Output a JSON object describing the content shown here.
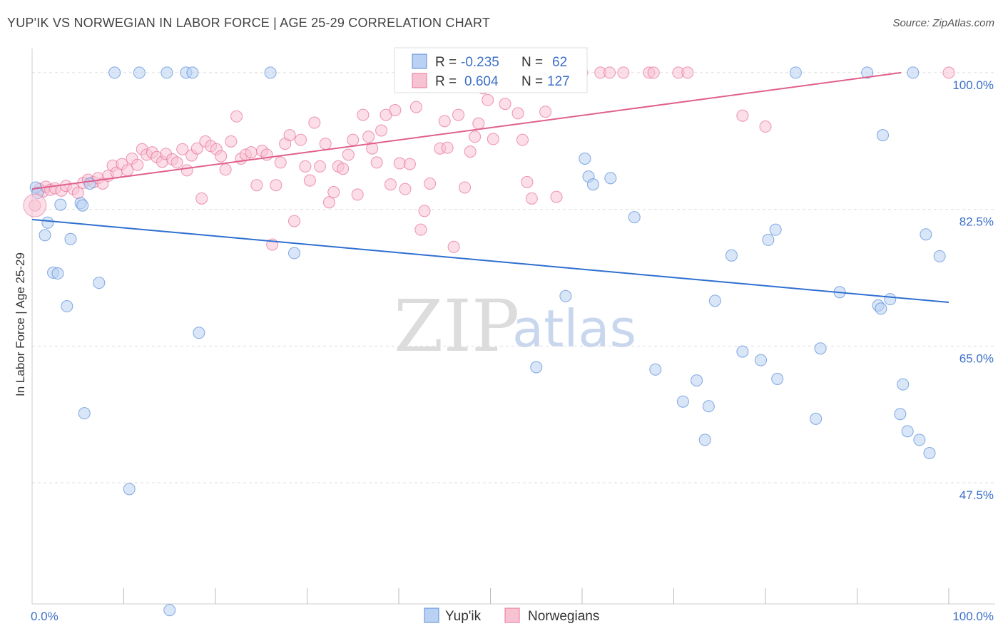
{
  "header": {
    "title": "YUP'IK VS NORWEGIAN IN LABOR FORCE | AGE 25-29 CORRELATION CHART",
    "source": "Source: ZipAtlas.com"
  },
  "watermark": {
    "part1": "ZIP",
    "part2": "atlas"
  },
  "legend": {
    "rows": [
      {
        "r_label": "R =",
        "r_value": "-0.235",
        "n_label": "N =",
        "n_value": "62",
        "color": "#5b8dd9"
      },
      {
        "r_label": "R =",
        "r_value": "0.604",
        "n_label": "N =",
        "n_value": "127",
        "color": "#e8739a"
      }
    ]
  },
  "chart_data": {
    "type": "scatter",
    "title": "YUP'IK VS NORWEGIAN IN LABOR FORCE | AGE 25-29 CORRELATION CHART",
    "xlabel": "",
    "ylabel": "In Labor Force | Age 25-29",
    "xlim": [
      0,
      100
    ],
    "ylim": [
      32,
      102
    ],
    "x_tick_labels": [
      "0.0%",
      "100.0%"
    ],
    "y_ticks": [
      47.5,
      65.0,
      82.5,
      100.0
    ],
    "y_tick_labels": [
      "47.5%",
      "65.0%",
      "82.5%",
      "100.0%"
    ],
    "grid": true,
    "legend_position": "bottom",
    "series": [
      {
        "name": "Yup'ik",
        "color": "#5b8dd9",
        "fill": "#b9d1f2",
        "trend": {
          "x": [
            0,
            100
          ],
          "y": [
            81.2,
            70.6
          ]
        },
        "points": [
          [
            0.4,
            85.3
          ],
          [
            0.6,
            84.6
          ],
          [
            1.4,
            79.2
          ],
          [
            1.7,
            80.8
          ],
          [
            2.3,
            74.4
          ],
          [
            2.8,
            74.3
          ],
          [
            3.1,
            83.1
          ],
          [
            3.8,
            70.1
          ],
          [
            4.2,
            78.7
          ],
          [
            5.3,
            83.3
          ],
          [
            5.5,
            83.0
          ],
          [
            6.3,
            85.8
          ],
          [
            5.7,
            56.4
          ],
          [
            7.3,
            73.1
          ],
          [
            9.0,
            100.0
          ],
          [
            10.6,
            46.7
          ],
          [
            11.7,
            100.0
          ],
          [
            14.7,
            100.0
          ],
          [
            15.0,
            31.2
          ],
          [
            16.8,
            100.0
          ],
          [
            17.5,
            100.0
          ],
          [
            18.2,
            66.7
          ],
          [
            26.0,
            100.0
          ],
          [
            28.6,
            76.9
          ],
          [
            55.0,
            62.3
          ],
          [
            58.2,
            71.4
          ],
          [
            60.3,
            89.0
          ],
          [
            60.7,
            86.7
          ],
          [
            61.2,
            85.7
          ],
          [
            63.1,
            86.5
          ],
          [
            65.7,
            81.5
          ],
          [
            68.0,
            62.0
          ],
          [
            71.0,
            57.9
          ],
          [
            72.5,
            60.6
          ],
          [
            73.4,
            53.0
          ],
          [
            73.8,
            57.3
          ],
          [
            74.5,
            70.8
          ],
          [
            76.3,
            76.6
          ],
          [
            77.5,
            64.3
          ],
          [
            79.5,
            63.2
          ],
          [
            80.3,
            78.6
          ],
          [
            81.1,
            79.9
          ],
          [
            81.3,
            60.8
          ],
          [
            83.3,
            100.0
          ],
          [
            85.5,
            55.7
          ],
          [
            86.0,
            64.7
          ],
          [
            88.1,
            71.9
          ],
          [
            91.1,
            100.0
          ],
          [
            92.3,
            70.2
          ],
          [
            92.6,
            69.8
          ],
          [
            92.8,
            92.0
          ],
          [
            93.6,
            71.0
          ],
          [
            95.0,
            60.1
          ],
          [
            94.7,
            56.3
          ],
          [
            95.5,
            54.1
          ],
          [
            96.1,
            100.0
          ],
          [
            96.8,
            53.0
          ],
          [
            97.5,
            79.3
          ],
          [
            97.9,
            51.3
          ],
          [
            99.0,
            76.5
          ]
        ]
      },
      {
        "name": "Norwegians",
        "color": "#e8739a",
        "fill": "#f7c3d3",
        "trend": {
          "x": [
            0,
            94.8
          ],
          "y": [
            85.1,
            100.0
          ]
        },
        "points": [
          [
            0.3,
            83.0
          ],
          [
            0.8,
            85.1
          ],
          [
            1.2,
            84.8
          ],
          [
            1.5,
            85.4
          ],
          [
            2.0,
            85.0
          ],
          [
            2.5,
            85.2
          ],
          [
            3.2,
            84.9
          ],
          [
            3.7,
            85.5
          ],
          [
            4.5,
            85.1
          ],
          [
            5.0,
            84.6
          ],
          [
            5.6,
            85.9
          ],
          [
            6.1,
            86.3
          ],
          [
            6.7,
            86.0
          ],
          [
            7.2,
            86.5
          ],
          [
            7.7,
            85.8
          ],
          [
            8.3,
            86.8
          ],
          [
            8.8,
            88.1
          ],
          [
            9.2,
            87.2
          ],
          [
            9.8,
            88.3
          ],
          [
            10.4,
            87.5
          ],
          [
            10.9,
            89.0
          ],
          [
            11.5,
            88.2
          ],
          [
            12.0,
            90.2
          ],
          [
            12.5,
            89.5
          ],
          [
            13.1,
            89.8
          ],
          [
            13.6,
            89.2
          ],
          [
            14.2,
            88.6
          ],
          [
            14.6,
            89.6
          ],
          [
            15.3,
            88.9
          ],
          [
            15.8,
            88.5
          ],
          [
            16.4,
            90.2
          ],
          [
            16.9,
            87.5
          ],
          [
            17.4,
            89.4
          ],
          [
            18.0,
            90.3
          ],
          [
            18.5,
            83.9
          ],
          [
            18.9,
            91.2
          ],
          [
            19.5,
            90.6
          ],
          [
            20.1,
            90.2
          ],
          [
            20.6,
            89.3
          ],
          [
            21.1,
            87.6
          ],
          [
            21.7,
            91.2
          ],
          [
            22.3,
            94.4
          ],
          [
            22.8,
            89.0
          ],
          [
            23.3,
            89.5
          ],
          [
            23.9,
            89.8
          ],
          [
            24.5,
            85.6
          ],
          [
            25.1,
            90.0
          ],
          [
            25.6,
            89.5
          ],
          [
            26.2,
            78.0
          ],
          [
            26.6,
            85.6
          ],
          [
            27.1,
            88.5
          ],
          [
            27.6,
            90.9
          ],
          [
            28.1,
            92.0
          ],
          [
            28.6,
            81.0
          ],
          [
            29.3,
            91.4
          ],
          [
            29.8,
            88.0
          ],
          [
            30.3,
            86.2
          ],
          [
            30.8,
            93.6
          ],
          [
            31.4,
            88.0
          ],
          [
            32.0,
            90.9
          ],
          [
            32.4,
            83.4
          ],
          [
            32.9,
            84.7
          ],
          [
            33.4,
            88.0
          ],
          [
            33.9,
            87.7
          ],
          [
            34.5,
            89.5
          ],
          [
            35.0,
            91.4
          ],
          [
            35.5,
            84.4
          ],
          [
            36.1,
            94.6
          ],
          [
            36.7,
            91.8
          ],
          [
            37.1,
            90.3
          ],
          [
            37.6,
            88.5
          ],
          [
            38.1,
            92.6
          ],
          [
            38.6,
            94.6
          ],
          [
            39.1,
            85.7
          ],
          [
            39.6,
            95.2
          ],
          [
            40.1,
            88.4
          ],
          [
            40.7,
            85.1
          ],
          [
            41.2,
            88.3
          ],
          [
            41.9,
            95.6
          ],
          [
            42.4,
            79.9
          ],
          [
            42.8,
            82.3
          ],
          [
            43.4,
            85.8
          ],
          [
            43.8,
            100.0
          ],
          [
            44.5,
            90.3
          ],
          [
            45.0,
            93.8
          ],
          [
            45.3,
            90.4
          ],
          [
            46.0,
            77.7
          ],
          [
            46.5,
            94.6
          ],
          [
            47.2,
            85.3
          ],
          [
            47.8,
            89.9
          ],
          [
            48.3,
            91.8
          ],
          [
            48.7,
            93.5
          ],
          [
            49.2,
            98.0
          ],
          [
            49.7,
            96.5
          ],
          [
            50.3,
            91.5
          ],
          [
            51.6,
            96.0
          ],
          [
            53.0,
            94.8
          ],
          [
            53.5,
            91.4
          ],
          [
            54.0,
            86.0
          ],
          [
            54.5,
            83.9
          ],
          [
            55.3,
            100.0
          ],
          [
            56.0,
            95.0
          ],
          [
            56.7,
            98.5
          ],
          [
            57.2,
            84.1
          ],
          [
            58.1,
            100.0
          ],
          [
            60.0,
            100.0
          ],
          [
            62.0,
            100.0
          ],
          [
            63.0,
            100.0
          ],
          [
            64.5,
            100.0
          ],
          [
            67.3,
            100.0
          ],
          [
            67.8,
            100.0
          ],
          [
            70.5,
            100.0
          ],
          [
            71.5,
            100.0
          ],
          [
            77.5,
            94.5
          ],
          [
            80.0,
            93.1
          ],
          [
            100.0,
            100.0
          ]
        ]
      }
    ]
  },
  "bottom_legend": {
    "items": [
      {
        "label": "Yup'ik",
        "color": "#5b8dd9",
        "fill": "#b9d1f2"
      },
      {
        "label": "Norwegians",
        "color": "#e8739a",
        "fill": "#f7c3d3"
      }
    ]
  }
}
